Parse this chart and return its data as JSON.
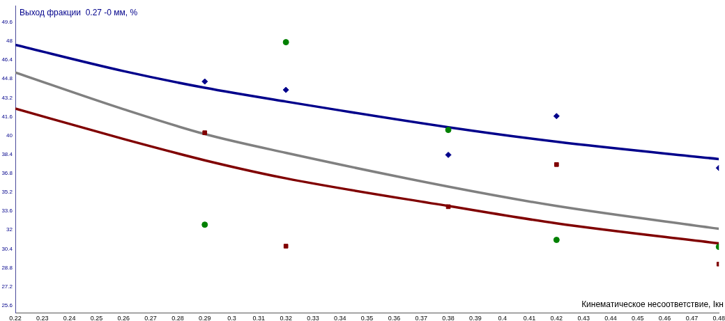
{
  "chart_data": {
    "type": "scatter",
    "ylabel": "Выход фракции  0.27 -0 мм, %",
    "xlabel": "Кинематическое несоответствие, Iкн",
    "xlim": [
      0.22,
      0.48
    ],
    "xticks": [
      0.22,
      0.23,
      0.24,
      0.25,
      0.26,
      0.27,
      0.28,
      0.29,
      0.3,
      0.31,
      0.32,
      0.33,
      0.34,
      0.35,
      0.36,
      0.37,
      0.38,
      0.39,
      0.4,
      0.41,
      0.42,
      0.43,
      0.44,
      0.45,
      0.46,
      0.47,
      0.48
    ],
    "ylim": [
      25,
      51
    ],
    "yticks": [
      25.6,
      27.2,
      28.8,
      30.4,
      32,
      33.6,
      35.2,
      36.8,
      38.4,
      40,
      41.6,
      43.2,
      44.8,
      46.4,
      48,
      49.6
    ],
    "grid": false,
    "legend": false,
    "series": [
      {
        "marker": "diamond",
        "color": "#00008b",
        "x": [
          0.29,
          0.32,
          0.38,
          0.42,
          0.48
        ],
        "values": [
          44.57,
          43.86,
          38.36,
          41.64,
          37.25
        ]
      },
      {
        "marker": "square",
        "color": "#800000",
        "x": [
          0.29,
          0.32,
          0.38,
          0.42,
          0.48
        ],
        "values": [
          40.23,
          30.63,
          33.97,
          37.54,
          29.11
        ]
      },
      {
        "marker": "circle",
        "color": "#008000",
        "x": [
          0.29,
          0.32,
          0.38,
          0.42,
          0.48
        ],
        "values": [
          32.45,
          47.9,
          40.47,
          31.16,
          30.57
        ]
      },
      {
        "type": "line",
        "marker": "none",
        "color": "#00008b",
        "x": [
          0.22,
          0.26,
          0.29,
          0.32,
          0.38,
          0.42,
          0.48
        ],
        "values": [
          47.67,
          45.45,
          44.04,
          42.87,
          40.7,
          39.47,
          38.0
        ]
      },
      {
        "type": "line",
        "marker": "none",
        "color": "#808080",
        "x": [
          0.22,
          0.26,
          0.29,
          0.32,
          0.38,
          0.42,
          0.48
        ],
        "values": [
          45.33,
          42.22,
          40.12,
          38.53,
          35.67,
          34.03,
          32.1
        ]
      },
      {
        "type": "line",
        "marker": "none",
        "color": "#800000",
        "x": [
          0.22,
          0.26,
          0.29,
          0.32,
          0.38,
          0.42,
          0.48
        ],
        "values": [
          42.28,
          39.7,
          37.9,
          36.37,
          34.03,
          32.56,
          30.86
        ]
      }
    ]
  }
}
